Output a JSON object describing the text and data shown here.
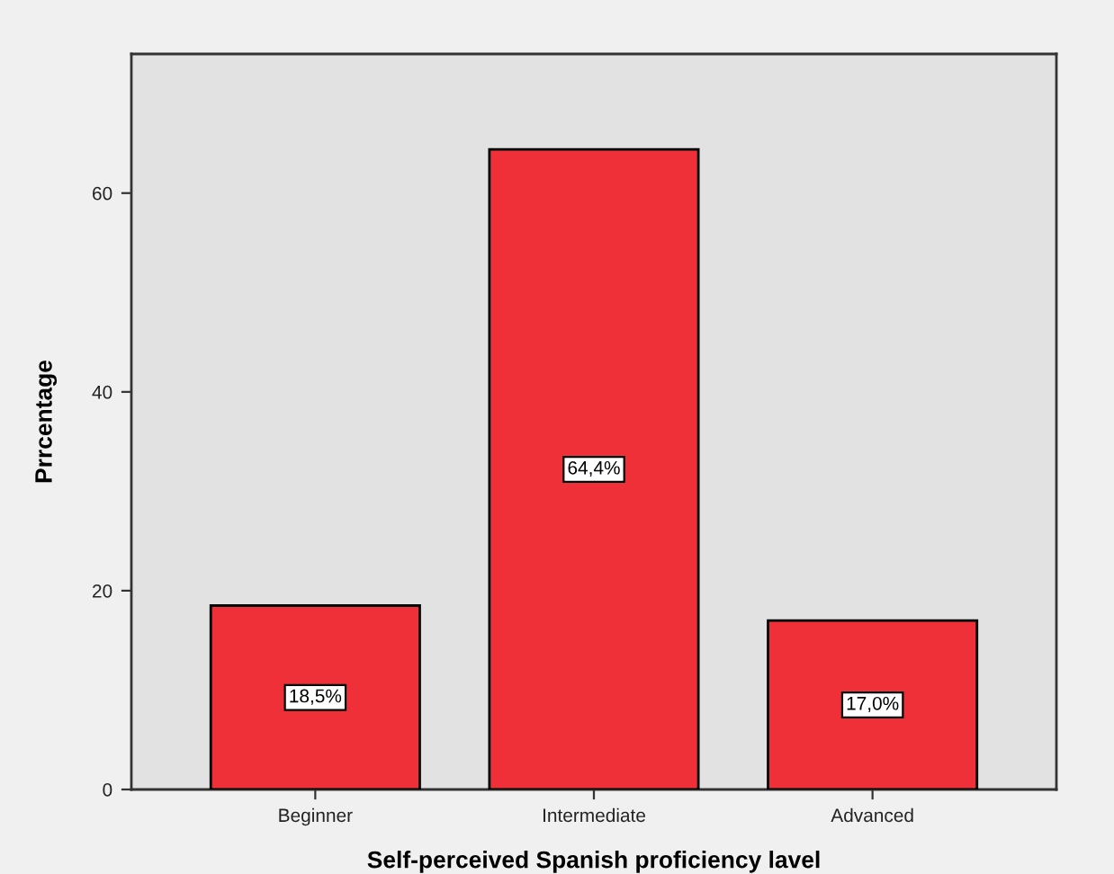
{
  "chart_data": {
    "type": "bar",
    "xlabel": "Self-perceived Spanish proficiency lavel",
    "ylabel": "Prrcentage",
    "categories": [
      "Beginner",
      "Intermediate",
      "Advanced"
    ],
    "values": [
      18.5,
      64.4,
      17.0
    ],
    "value_labels": [
      "18,5%",
      "64,4%",
      "17,0%"
    ],
    "color": "#ef3038",
    "ylim": [
      0,
      74
    ],
    "yticks": [
      0,
      20,
      40,
      60
    ]
  }
}
